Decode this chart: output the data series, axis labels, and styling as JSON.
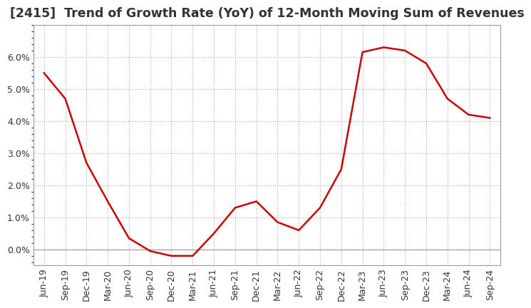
{
  "title": "[2415]  Trend of Growth Rate (YoY) of 12-Month Moving Sum of Revenues",
  "x_labels": [
    "Jun-19",
    "Sep-19",
    "Dec-19",
    "Mar-20",
    "Jun-20",
    "Sep-20",
    "Dec-20",
    "Mar-21",
    "Jun-21",
    "Sep-21",
    "Dec-21",
    "Mar-22",
    "Jun-22",
    "Sep-22",
    "Dec-22",
    "Mar-23",
    "Jun-23",
    "Sep-23",
    "Dec-23",
    "Mar-24",
    "Jun-24",
    "Sep-24"
  ],
  "y_values": [
    5.5,
    4.7,
    2.7,
    1.5,
    0.35,
    -0.05,
    -0.2,
    -0.2,
    0.5,
    1.3,
    1.5,
    0.85,
    0.6,
    1.3,
    2.5,
    6.15,
    6.3,
    6.2,
    5.8,
    4.7,
    4.2,
    4.1
  ],
  "ylim": [
    -0.5,
    7.0
  ],
  "yticks": [
    0.0,
    1.0,
    2.0,
    3.0,
    4.0,
    5.0,
    6.0
  ],
  "line_color": "#cc0000",
  "background_color": "#ffffff",
  "grid_color": "#aaaaaa",
  "title_color": "#333333",
  "title_fontsize": 12.5,
  "tick_fontsize": 9,
  "box_color": "#999999"
}
